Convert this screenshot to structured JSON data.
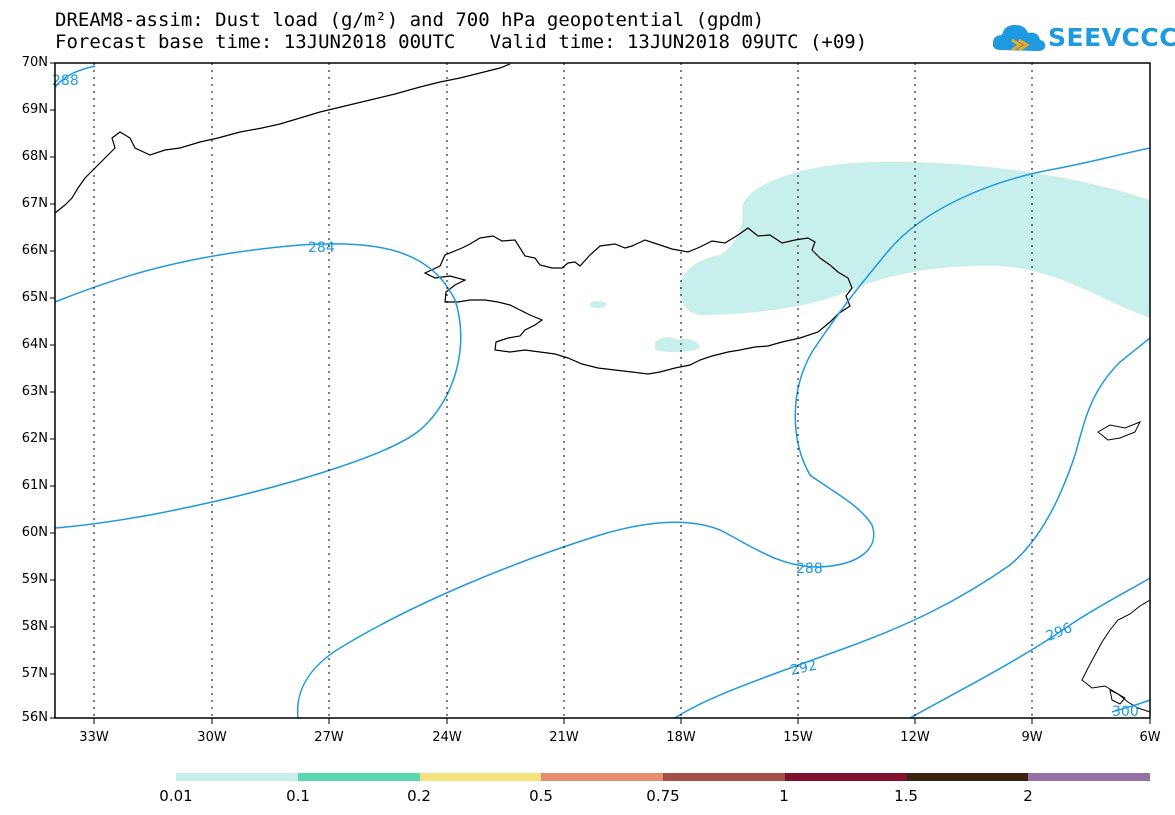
{
  "title": {
    "line1": "DREAM8-assim: Dust load (g/m²) and 700 hPa geopotential (gpdm)",
    "line2": "Forecast base time: 13JUN2018 00UTC   Valid time: 13JUN2018 09UTC (+09)"
  },
  "logo": {
    "text": "SEEVCCC",
    "icon": "cloud-icon",
    "color": "#1e9ae0"
  },
  "map": {
    "lat_labels": [
      "70N",
      "69N",
      "68N",
      "67N",
      "66N",
      "65N",
      "64N",
      "63N",
      "62N",
      "61N",
      "60N",
      "59N",
      "58N",
      "57N",
      "56N"
    ],
    "lon_labels": [
      "33W",
      "30W",
      "27W",
      "24W",
      "21W",
      "18W",
      "15W",
      "12W",
      "9W",
      "6W"
    ],
    "contour_labels": [
      "288",
      "284",
      "288",
      "292",
      "296",
      "300"
    ],
    "contour_color": "#1e9ae0",
    "dust_color": "#c7f0ec"
  },
  "colorbar": {
    "labels": [
      "0.01",
      "0.1",
      "0.2",
      "0.5",
      "0.75",
      "1",
      "1.5",
      "2"
    ],
    "colors": [
      "#c7f0ec",
      "#5ad8b0",
      "#f5e37a",
      "#e78d6d",
      "#a44f4a",
      "#80122e",
      "#3a2410",
      "#9372a6"
    ]
  }
}
